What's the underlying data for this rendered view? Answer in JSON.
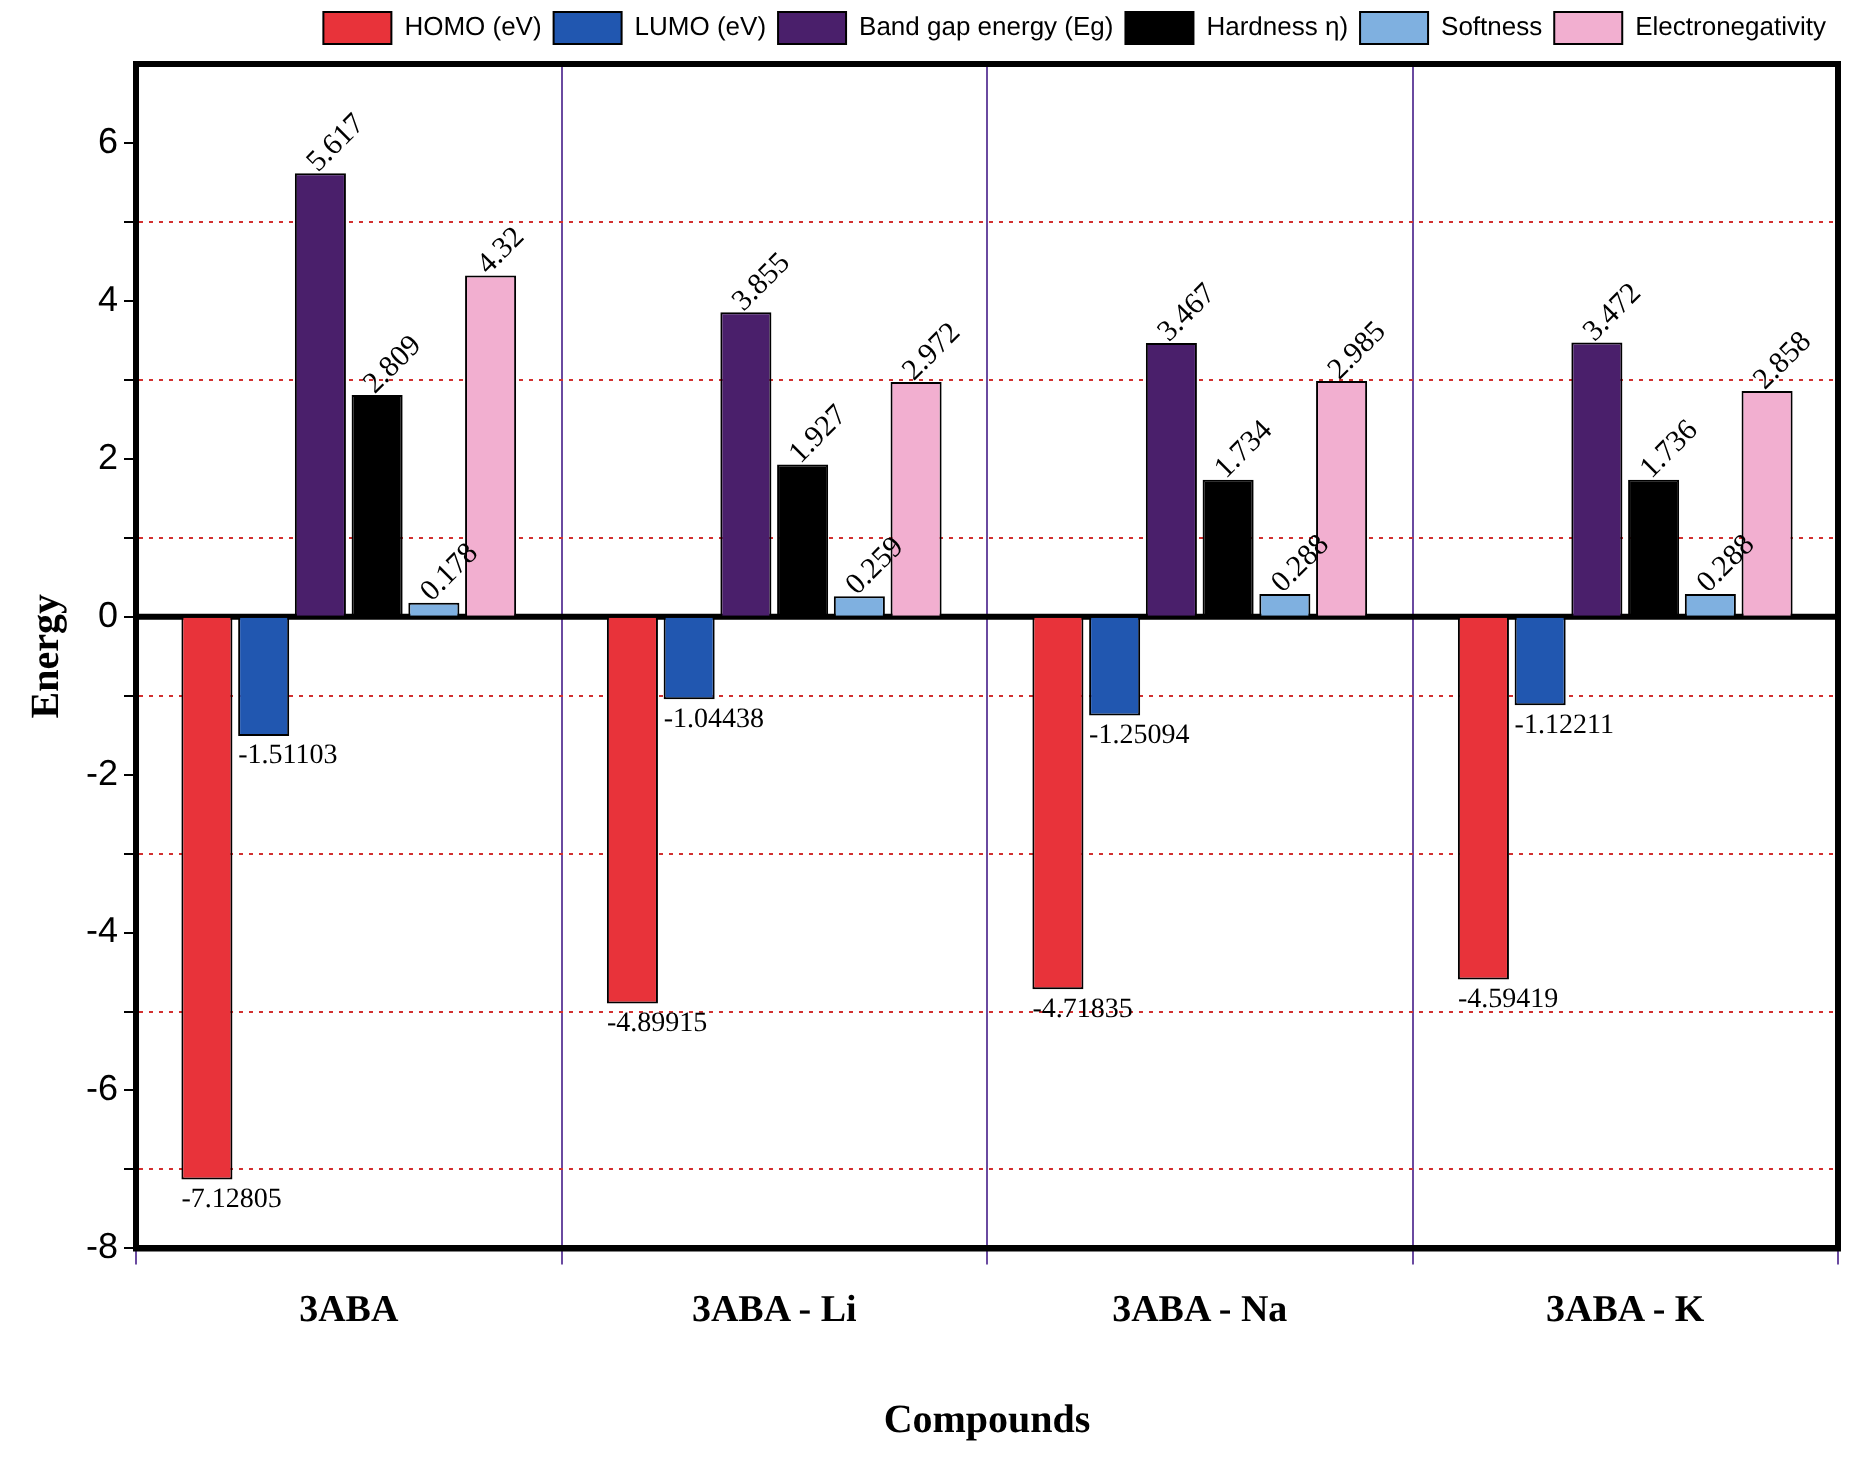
{
  "chart_data": {
    "type": "bar",
    "xlabel": "Compounds",
    "ylabel": "Energy",
    "categories": [
      "3ABA",
      "3ABA - Li",
      "3ABA - Na",
      "3ABA - K"
    ],
    "series": [
      {
        "name": "HOMO (eV)",
        "color": "#e8333a",
        "values": [
          -7.12805,
          -4.89915,
          -4.71835,
          -4.59419
        ]
      },
      {
        "name": "LUMO (eV)",
        "color": "#2157b0",
        "values": [
          -1.51103,
          -1.04438,
          -1.25094,
          -1.12211
        ]
      },
      {
        "name": "Band gap energy (Eg)",
        "color": "#4a1f6b",
        "values": [
          5.617,
          3.855,
          3.467,
          3.472
        ]
      },
      {
        "name": "Hardness η)",
        "color": "#000000",
        "values": [
          2.809,
          1.927,
          1.734,
          1.736
        ]
      },
      {
        "name": "Softness",
        "color": "#7fb0e0",
        "values": [
          0.178,
          0.259,
          0.288,
          0.288
        ]
      },
      {
        "name": "Electronegativity",
        "color": "#f2afd0",
        "values": [
          4.32,
          2.972,
          2.985,
          2.858
        ]
      }
    ],
    "ylim": [
      -8,
      7
    ],
    "yticks": [
      -8,
      {
        "value": -7,
        "label": null
      },
      -6,
      {
        "value": -5,
        "label": null
      },
      -4,
      {
        "value": -3,
        "label": null
      },
      -2,
      {
        "value": -1,
        "label": null
      },
      0,
      {
        "value": 1,
        "label": null
      },
      2,
      {
        "value": 3,
        "label": null
      },
      4,
      {
        "value": 5,
        "label": null
      },
      6
    ],
    "ref_lines": [
      {
        "axis": "y",
        "value": 0,
        "color": "#000000"
      }
    ],
    "grid": true,
    "legend": "top",
    "data_labels": true
  }
}
